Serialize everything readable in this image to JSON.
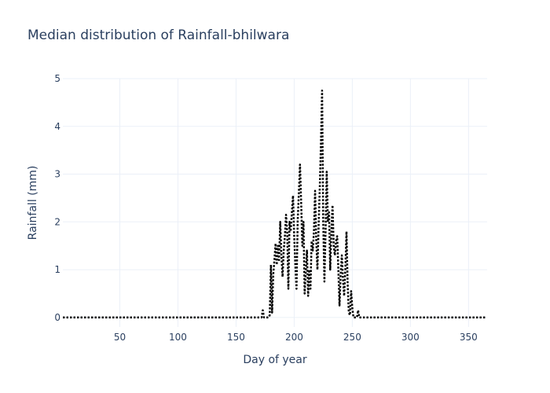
{
  "chart_data": {
    "type": "line",
    "title": "Median distribution of Rainfall-bhilwara",
    "x_label": "Day of year",
    "y_label": "Rainfall (mm)",
    "color": "#000000",
    "grid": true,
    "xlim": [
      1,
      366
    ],
    "ylim": [
      -0.2,
      5
    ],
    "xticks": [
      50,
      100,
      150,
      200,
      250,
      300,
      350
    ],
    "yticks": [
      0,
      1,
      2,
      3,
      4,
      5
    ],
    "x": [
      1,
      170,
      171,
      172,
      173,
      174,
      175,
      176,
      177,
      178,
      179,
      180,
      181,
      182,
      183,
      184,
      185,
      186,
      187,
      188,
      189,
      190,
      191,
      192,
      193,
      194,
      195,
      196,
      197,
      198,
      199,
      200,
      201,
      202,
      203,
      204,
      205,
      206,
      207,
      208,
      209,
      210,
      211,
      212,
      213,
      214,
      215,
      216,
      217,
      218,
      219,
      220,
      221,
      222,
      223,
      224,
      225,
      226,
      227,
      228,
      229,
      230,
      231,
      232,
      233,
      234,
      235,
      236,
      237,
      238,
      239,
      240,
      241,
      242,
      243,
      244,
      245,
      246,
      247,
      248,
      249,
      250,
      251,
      252,
      253,
      254,
      255,
      256,
      257,
      258,
      365
    ],
    "values": [
      0,
      0,
      0,
      0,
      0.15,
      0,
      0,
      0,
      0,
      0,
      0.05,
      1.1,
      0.1,
      0.9,
      1.2,
      1.55,
      1.1,
      1.5,
      1.2,
      2.0,
      1.3,
      0.85,
      1.4,
      1.7,
      2.15,
      1.8,
      0.6,
      2.0,
      1.8,
      2.2,
      2.55,
      1.7,
      1.1,
      0.6,
      2.0,
      2.6,
      3.2,
      2.4,
      1.5,
      2.0,
      0.5,
      1.0,
      1.4,
      0.45,
      1.0,
      0.6,
      1.6,
      1.4,
      1.8,
      2.65,
      1.6,
      1.0,
      1.9,
      2.7,
      3.6,
      4.75,
      2.0,
      0.75,
      1.8,
      3.05,
      2.0,
      2.2,
      1.0,
      1.8,
      2.35,
      1.5,
      1.3,
      1.6,
      1.7,
      1.0,
      0.25,
      0.9,
      1.3,
      0.8,
      0.45,
      1.0,
      1.8,
      0.7,
      0.1,
      0.05,
      0.55,
      0.2,
      0,
      0,
      0,
      0,
      0.15,
      0,
      0,
      0,
      0
    ]
  }
}
